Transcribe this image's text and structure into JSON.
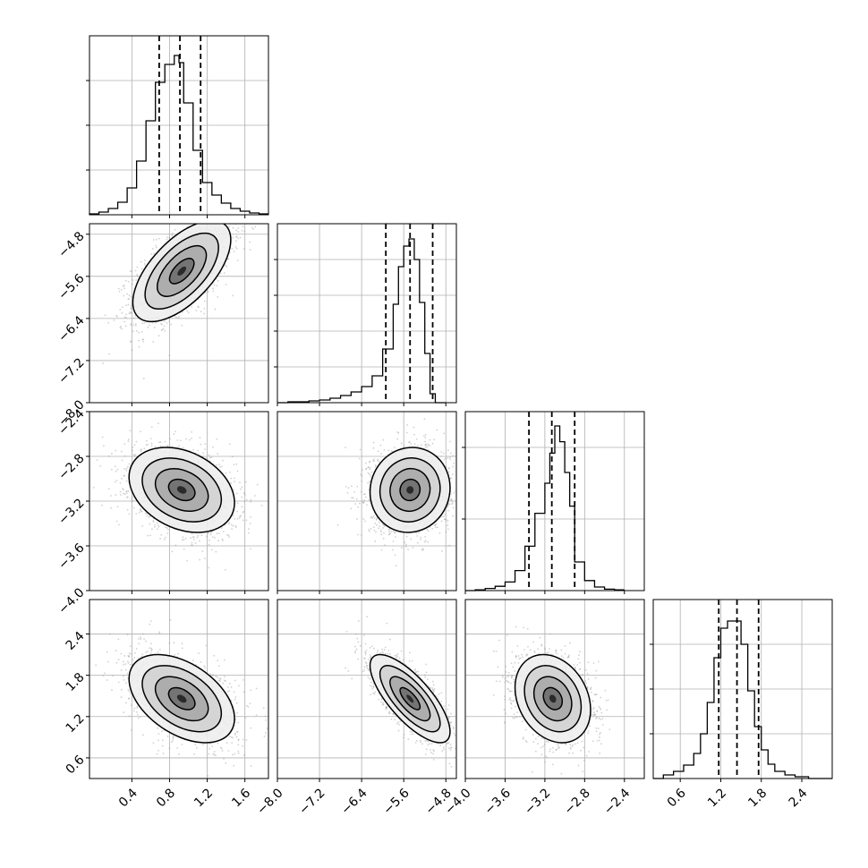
{
  "chart_data": {
    "type": "corner",
    "grid": true,
    "num_params": 4,
    "params": [
      {
        "xlim": [
          -0.05,
          1.85
        ],
        "ticks": [
          "0.4",
          "0.8",
          "1.2",
          "1.6"
        ],
        "tick_values": [
          0.4,
          0.8,
          1.2,
          1.6
        ]
      },
      {
        "xlim": [
          -8.0,
          -4.6
        ],
        "ticks": [
          "−8.0",
          "−7.2",
          "−6.4",
          "−5.6",
          "−4.8"
        ],
        "tick_values": [
          -8.0,
          -7.2,
          -6.4,
          -5.6,
          -4.8
        ]
      },
      {
        "xlim": [
          -4.0,
          -2.2
        ],
        "ticks": [
          "−4.0",
          "−3.6",
          "−3.2",
          "−2.8",
          "−2.4"
        ],
        "tick_values": [
          -4.0,
          -3.6,
          -3.2,
          -2.8,
          -2.4
        ]
      },
      {
        "xlim": [
          0.2,
          2.85
        ],
        "ticks": [
          "0.6",
          "1.2",
          "1.8",
          "2.4"
        ],
        "tick_values": [
          0.6,
          1.2,
          1.8,
          2.4
        ]
      }
    ],
    "row_ylims": [
      null,
      [
        -8.0,
        -4.6
      ],
      [
        -4.0,
        -2.4
      ],
      [
        0.3,
        2.9
      ]
    ],
    "row_yticks": [
      null,
      {
        "labels": [
          "−4.8",
          "−5.6",
          "−6.4",
          "−7.2",
          "−8.0"
        ],
        "values": [
          -4.8,
          -5.6,
          -6.4,
          -7.2,
          -8.0
        ]
      },
      {
        "labels": [
          "−2.4",
          "−2.8",
          "−3.2",
          "−3.6",
          "−4.0"
        ],
        "values": [
          -2.4,
          -2.8,
          -3.2,
          -3.6,
          -4.0
        ]
      },
      {
        "labels": [
          "2.4",
          "1.8",
          "1.2",
          "0.6"
        ],
        "values": [
          2.4,
          1.8,
          1.2,
          0.6
        ]
      }
    ],
    "histograms": [
      {
        "bins": [
          -0.05,
          0.05,
          0.15,
          0.25,
          0.35,
          0.45,
          0.55,
          0.65,
          0.75,
          0.85,
          0.9,
          0.95,
          1.05,
          1.15,
          1.25,
          1.35,
          1.45,
          1.55,
          1.65,
          1.75,
          1.85
        ],
        "counts": [
          1,
          3,
          7,
          14,
          30,
          60,
          105,
          148,
          168,
          178,
          170,
          125,
          72,
          36,
          22,
          13,
          7,
          4,
          2,
          1
        ],
        "ymax": 200,
        "quantiles": [
          0.69,
          0.91,
          1.13
        ],
        "ytick_values": [
          50,
          100,
          150
        ]
      },
      {
        "bins": [
          -8.0,
          -7.8,
          -7.6,
          -7.4,
          -7.2,
          -7.0,
          -6.8,
          -6.6,
          -6.4,
          -6.2,
          -6.0,
          -5.8,
          -5.7,
          -5.6,
          -5.5,
          -5.4,
          -5.3,
          -5.2,
          -5.1,
          -5.0,
          -4.8
        ],
        "counts": [
          0,
          1,
          1,
          2,
          3,
          5,
          8,
          12,
          18,
          30,
          60,
          110,
          152,
          175,
          183,
          160,
          112,
          55,
          10,
          0
        ],
        "ymax": 200,
        "quantiles": [
          -5.94,
          -5.48,
          -5.05
        ],
        "ytick_values": [
          40,
          80,
          120,
          160
        ]
      },
      {
        "bins": [
          -4.0,
          -3.9,
          -3.8,
          -3.7,
          -3.6,
          -3.5,
          -3.4,
          -3.3,
          -3.2,
          -3.15,
          -3.1,
          -3.05,
          -3.0,
          -2.95,
          -2.9,
          -2.8,
          -2.7,
          -2.6,
          -2.5,
          -2.4
        ],
        "counts": [
          0,
          1,
          3,
          6,
          12,
          28,
          62,
          108,
          150,
          192,
          230,
          208,
          165,
          118,
          40,
          14,
          5,
          2,
          1
        ],
        "ymax": 250,
        "quantiles": [
          -3.36,
          -3.13,
          -2.9
        ],
        "ytick_values": [
          100,
          200
        ]
      },
      {
        "bins": [
          0.2,
          0.35,
          0.5,
          0.65,
          0.8,
          0.9,
          1.0,
          1.1,
          1.2,
          1.3,
          1.4,
          1.5,
          1.6,
          1.7,
          1.8,
          1.9,
          2.0,
          2.15,
          2.3,
          2.5,
          2.85
        ],
        "counts": [
          0,
          4,
          8,
          15,
          28,
          50,
          85,
          135,
          168,
          176,
          176,
          150,
          98,
          58,
          32,
          16,
          8,
          4,
          2,
          0
        ],
        "ymax": 200,
        "quantiles": [
          1.17,
          1.44,
          1.76
        ],
        "ytick_values": [
          50,
          100,
          150
        ]
      }
    ],
    "pairs": [
      {
        "row": 1,
        "col": 0,
        "mean": [
          0.93,
          -5.5
        ],
        "sd": [
          0.26,
          0.48
        ],
        "rho": 0.62
      },
      {
        "row": 2,
        "col": 0,
        "mean": [
          0.93,
          -3.1
        ],
        "sd": [
          0.28,
          0.19
        ],
        "rho": -0.3
      },
      {
        "row": 2,
        "col": 1,
        "mean": [
          -5.48,
          -3.1
        ],
        "sd": [
          0.38,
          0.19
        ],
        "rho": 0.05
      },
      {
        "row": 3,
        "col": 0,
        "mean": [
          0.93,
          1.46
        ],
        "sd": [
          0.28,
          0.32
        ],
        "rho": -0.45
      },
      {
        "row": 3,
        "col": 1,
        "mean": [
          -5.48,
          1.46
        ],
        "sd": [
          0.38,
          0.32
        ],
        "rho": -0.75
      },
      {
        "row": 3,
        "col": 2,
        "mean": [
          -3.12,
          1.46
        ],
        "sd": [
          0.19,
          0.32
        ],
        "rho": -0.25
      }
    ],
    "contour_levels_sigma": [
      0.5,
      1.0,
      1.5,
      2.0
    ],
    "colors": {
      "scatter": "#9a9a9a",
      "line": "#000000",
      "grid": "#b0b0b0",
      "shade_dark": "#000000",
      "shade_light": "#ffffff"
    }
  }
}
